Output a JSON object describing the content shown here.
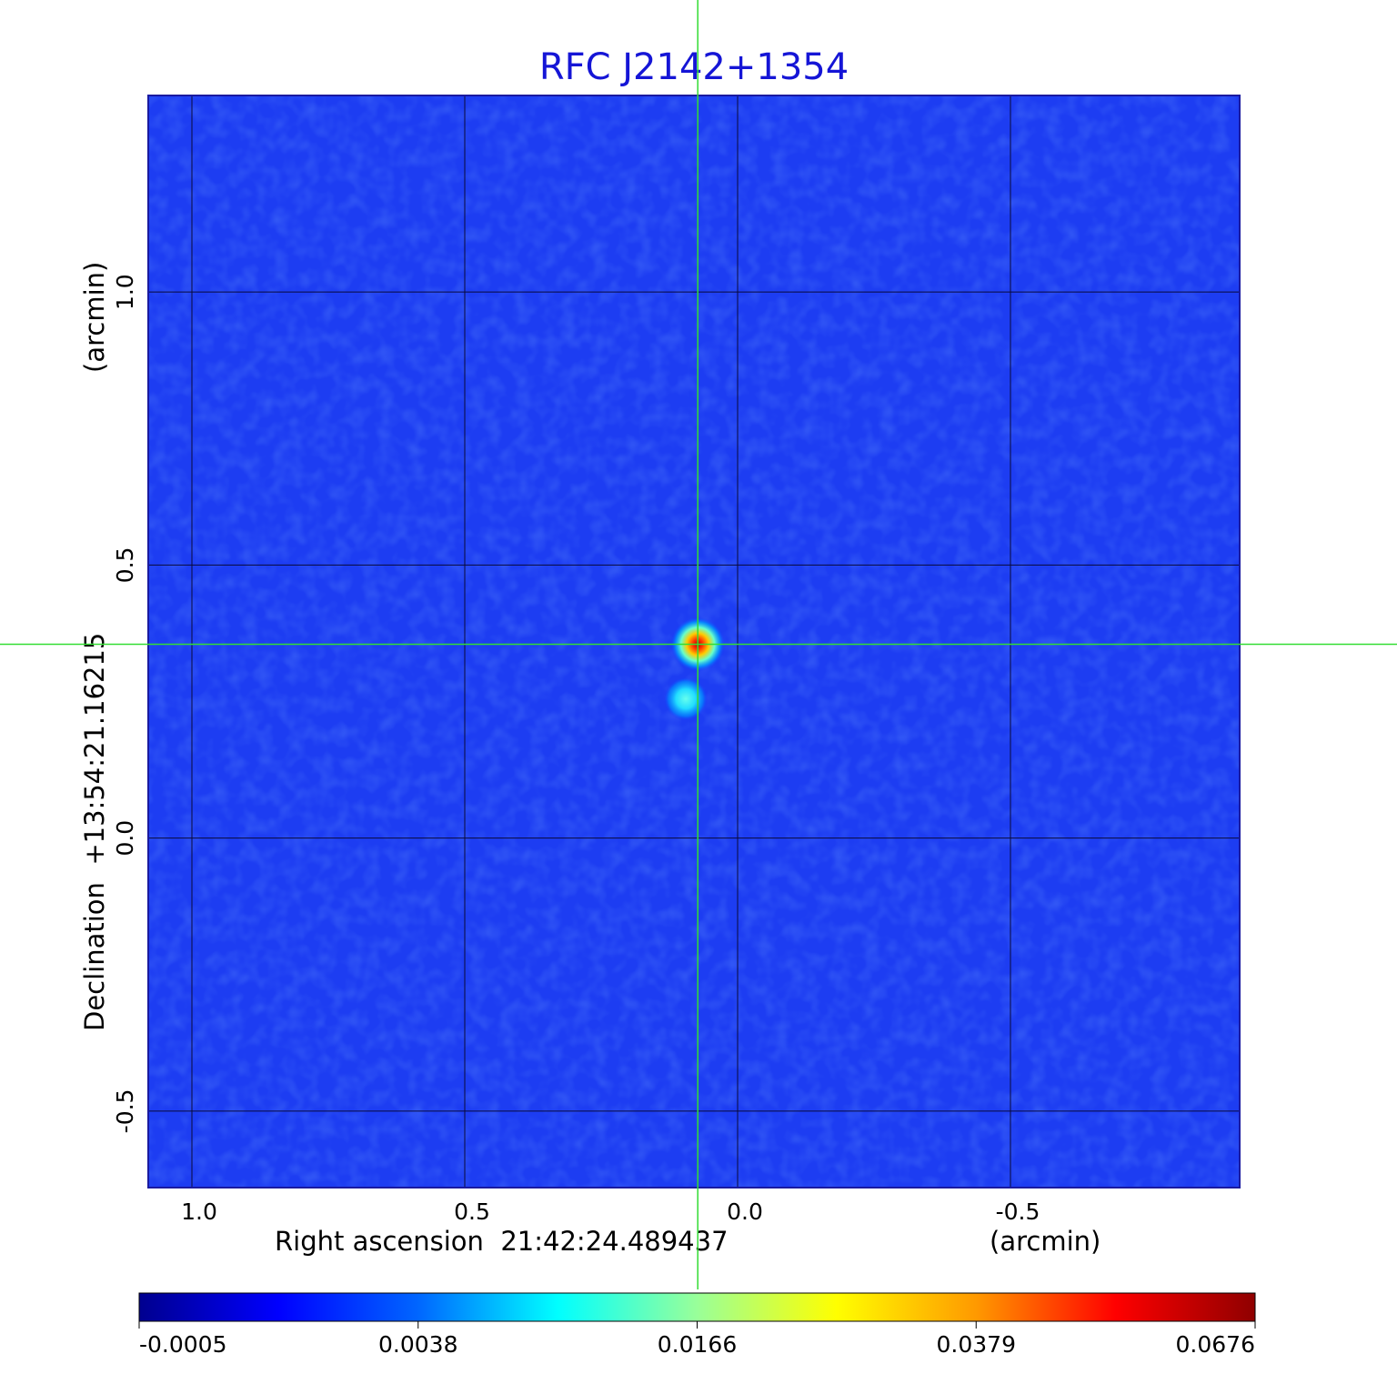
{
  "chart_data": {
    "type": "heatmap",
    "title": "RFC J2142+1354",
    "xlabel": "Right ascension  21:42:24.489437",
    "xunit": "(arcmin)",
    "ylabel": "Declination  +13:54:21.16215",
    "yunit": "(arcmin)",
    "xlim": [
      1.08,
      -0.92
    ],
    "ylim": [
      -0.64,
      1.36
    ],
    "x_ticks": [
      {
        "value": 1.0,
        "label": "1.0"
      },
      {
        "value": 0.5,
        "label": "0.5"
      },
      {
        "value": 0.0,
        "label": "0.0"
      },
      {
        "value": -0.5,
        "label": "-0.5"
      }
    ],
    "y_ticks": [
      {
        "value": 1.0,
        "label": "1.0"
      },
      {
        "value": 0.5,
        "label": "0.5"
      },
      {
        "value": 0.0,
        "label": "0.0"
      },
      {
        "value": -0.5,
        "label": "-0.5"
      }
    ],
    "grid": true,
    "crosshair": {
      "x": 0.073,
      "y": 0.355,
      "color": "#33dd33"
    },
    "sources": [
      {
        "x": 0.073,
        "y": 0.355,
        "peak": 0.0676
      },
      {
        "x": 0.095,
        "y": 0.255,
        "peak": 0.009
      }
    ],
    "colorbar": {
      "ticks": [
        {
          "value": -0.0005,
          "label": "-0.0005"
        },
        {
          "value": 0.0038,
          "label": "0.0038"
        },
        {
          "value": 0.0166,
          "label": "0.0166"
        },
        {
          "value": 0.0379,
          "label": "0.0379"
        },
        {
          "value": 0.0676,
          "label": "0.0676"
        }
      ],
      "colormap": "jet"
    }
  }
}
